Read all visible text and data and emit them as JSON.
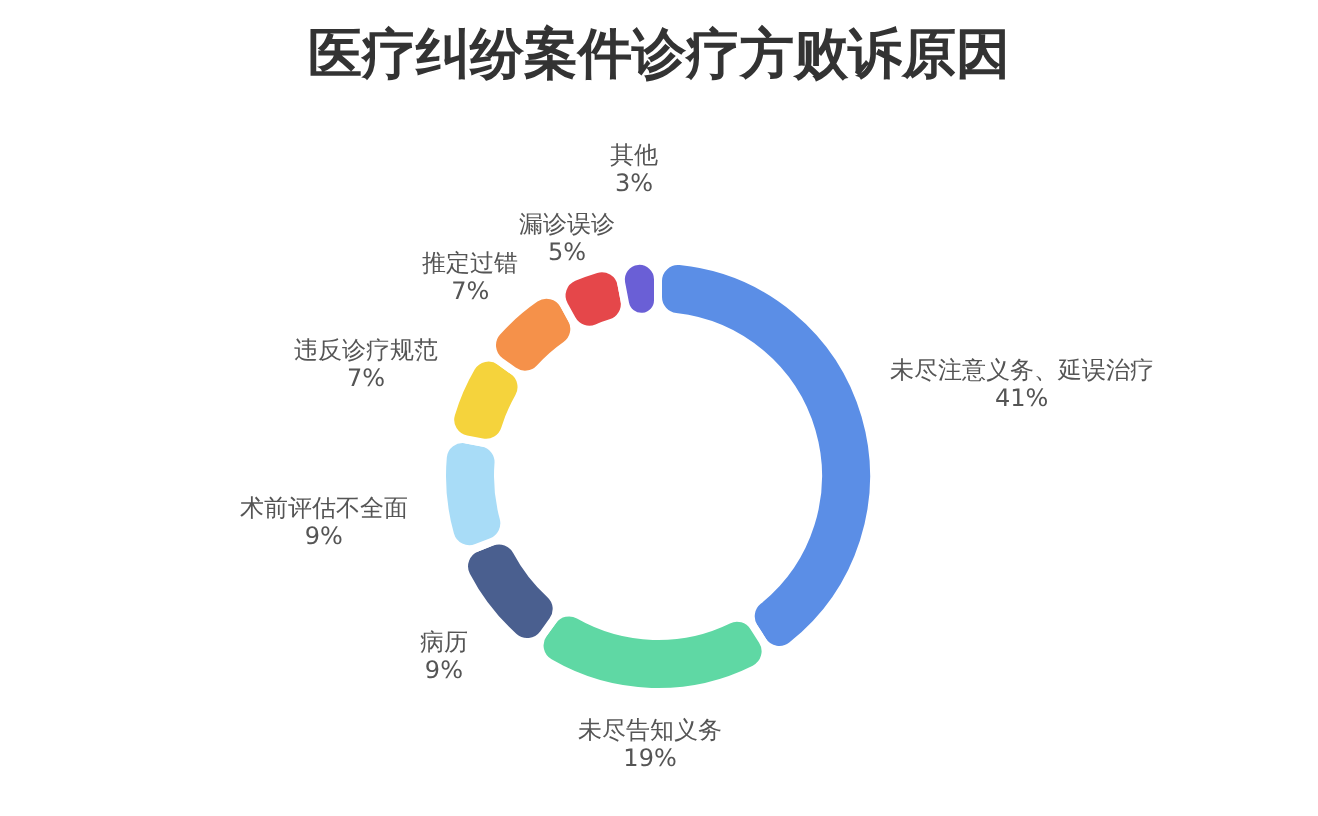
{
  "chart_data": {
    "type": "donut",
    "title": "医疗纠纷案件诊疗方败诉原因",
    "categories": [
      "未尽注意义务、延误治疗",
      "未尽告知义务",
      "病历",
      "术前评估不全面",
      "违反诊疗规范",
      "推定过错",
      "漏诊误诊",
      "其他"
    ],
    "values": [
      41,
      19,
      9,
      9,
      7,
      7,
      5,
      3
    ],
    "colors": [
      "#5b8ee6",
      "#5fd8a4",
      "#4a5f8f",
      "#a8dcf7",
      "#f5d33c",
      "#f5914a",
      "#e5474a",
      "#6a5fd6"
    ],
    "value_labels": [
      "41%",
      "19%",
      "9%",
      "9%",
      "7%",
      "7%",
      "5%",
      "3%"
    ],
    "legend": false
  }
}
